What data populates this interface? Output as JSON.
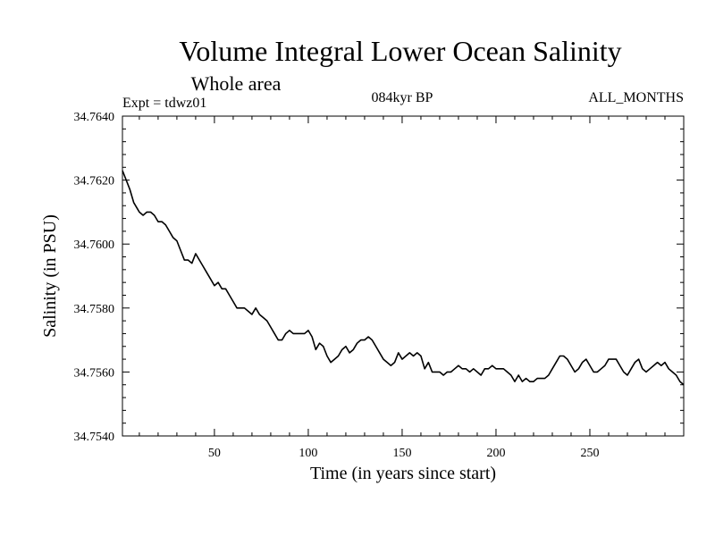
{
  "chart_data": {
    "type": "line",
    "title": "Volume Integral Lower Ocean Salinity",
    "subtitle": "Whole area",
    "expt_label": "Expt = tdwz01",
    "period_label": "084kyr BP",
    "months_label": "ALL_MONTHS",
    "xlabel": "Time (in years since start)",
    "ylabel": "Salinity (in PSU)",
    "xlim": [
      1,
      300
    ],
    "ylim": [
      34.754,
      34.764
    ],
    "xticks": [
      50,
      100,
      150,
      200,
      250
    ],
    "xtick_labels": [
      "50",
      "100",
      "150",
      "200",
      "250"
    ],
    "yticks": [
      34.754,
      34.756,
      34.758,
      34.76,
      34.762,
      34.764
    ],
    "ytick_labels": [
      "34.7540",
      "34.7560",
      "34.7580",
      "34.7600",
      "34.7620",
      "34.7640"
    ],
    "grid": false,
    "series": [
      {
        "name": "salinity",
        "color": "#000000",
        "x": [
          1,
          3,
          5,
          7,
          9,
          10,
          12,
          14,
          16,
          18,
          20,
          22,
          24,
          26,
          28,
          30,
          32,
          34,
          36,
          38,
          40,
          42,
          44,
          46,
          48,
          50,
          52,
          54,
          56,
          58,
          60,
          62,
          64,
          66,
          68,
          70,
          72,
          74,
          76,
          78,
          80,
          82,
          84,
          86,
          88,
          90,
          92,
          94,
          96,
          98,
          100,
          102,
          104,
          106,
          108,
          110,
          112,
          114,
          116,
          118,
          120,
          122,
          124,
          126,
          128,
          130,
          132,
          134,
          136,
          138,
          140,
          142,
          144,
          146,
          148,
          150,
          152,
          154,
          156,
          158,
          160,
          162,
          164,
          166,
          168,
          170,
          172,
          174,
          176,
          178,
          180,
          182,
          184,
          186,
          188,
          190,
          192,
          194,
          196,
          198,
          200,
          202,
          204,
          206,
          208,
          210,
          212,
          214,
          216,
          218,
          220,
          222,
          224,
          226,
          228,
          230,
          232,
          234,
          236,
          238,
          240,
          242,
          244,
          246,
          248,
          250,
          252,
          254,
          256,
          258,
          260,
          262,
          264,
          266,
          268,
          270,
          272,
          274,
          276,
          278,
          280,
          282,
          284,
          286,
          288,
          290,
          292,
          294,
          296,
          298,
          300
        ],
        "values": [
          34.7623,
          34.762,
          34.7617,
          34.7613,
          34.7611,
          34.761,
          34.7609,
          34.761,
          34.761,
          34.7609,
          34.7607,
          34.7607,
          34.7606,
          34.7604,
          34.7602,
          34.7601,
          34.7598,
          34.7595,
          34.7595,
          34.7594,
          34.7597,
          34.7595,
          34.7593,
          34.7591,
          34.7589,
          34.7587,
          34.7588,
          34.7586,
          34.7586,
          34.7584,
          34.7582,
          34.758,
          34.758,
          34.758,
          34.7579,
          34.7578,
          34.758,
          34.7578,
          34.7577,
          34.7576,
          34.7574,
          34.7572,
          34.757,
          34.757,
          34.7572,
          34.7573,
          34.7572,
          34.7572,
          34.7572,
          34.7572,
          34.7573,
          34.7571,
          34.7567,
          34.7569,
          34.7568,
          34.7565,
          34.7563,
          34.7564,
          34.7565,
          34.7567,
          34.7568,
          34.7566,
          34.7567,
          34.7569,
          34.757,
          34.757,
          34.7571,
          34.757,
          34.7568,
          34.7566,
          34.7564,
          34.7563,
          34.7562,
          34.7563,
          34.7566,
          34.7564,
          34.7565,
          34.7566,
          34.7565,
          34.7566,
          34.7565,
          34.7561,
          34.7563,
          34.756,
          34.756,
          34.756,
          34.7559,
          34.756,
          34.756,
          34.7561,
          34.7562,
          34.7561,
          34.7561,
          34.756,
          34.7561,
          34.756,
          34.7559,
          34.7561,
          34.7561,
          34.7562,
          34.7561,
          34.7561,
          34.7561,
          34.756,
          34.7559,
          34.7557,
          34.7559,
          34.7557,
          34.7558,
          34.7557,
          34.7557,
          34.7558,
          34.7558,
          34.7558,
          34.7559,
          34.7561,
          34.7563,
          34.7565,
          34.7565,
          34.7564,
          34.7562,
          34.756,
          34.7561,
          34.7563,
          34.7564,
          34.7562,
          34.756,
          34.756,
          34.7561,
          34.7562,
          34.7564,
          34.7564,
          34.7564,
          34.7562,
          34.756,
          34.7559,
          34.7561,
          34.7563,
          34.7564,
          34.7561,
          34.756,
          34.7561,
          34.7562,
          34.7563,
          34.7562,
          34.7563,
          34.7561,
          34.756,
          34.7559,
          34.7557,
          34.7556
        ]
      }
    ]
  }
}
